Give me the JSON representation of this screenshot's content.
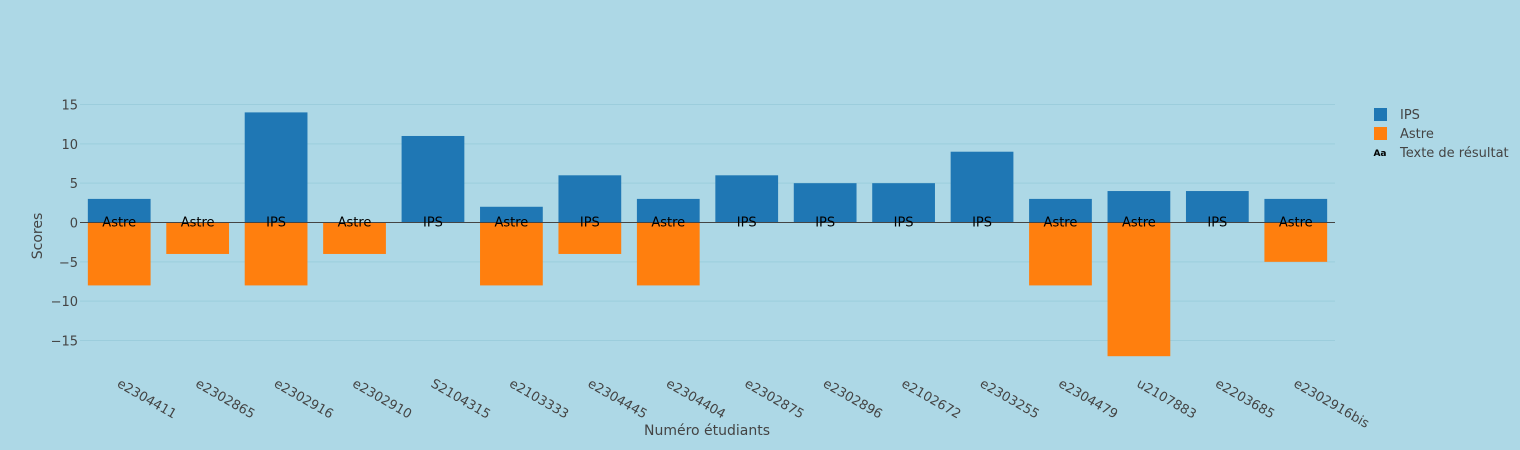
{
  "chart_data": {
    "type": "bar",
    "barmode": "relative",
    "title": "",
    "xlabel": "Numéro étudiants",
    "ylabel": "Scores",
    "ylim": [
      -18.5,
      18.5
    ],
    "yticks": [
      -15,
      -10,
      -5,
      0,
      5,
      10,
      15
    ],
    "grid": true,
    "legend_position": "top-right",
    "categories": [
      "e2304411",
      "e2302865",
      "e2302916",
      "e2302910",
      "S2104315",
      "e2103333",
      "e2304445",
      "e2304404",
      "e2302875",
      "e2302896",
      "e2102672",
      "e2303255",
      "e2304479",
      "u2107883",
      "e2203685",
      "e2302916bis"
    ],
    "series": [
      {
        "name": "IPS",
        "color": "#1f77b4",
        "values": [
          3,
          0,
          14,
          0,
          11,
          2,
          6,
          3,
          6,
          5,
          5,
          9,
          3,
          4,
          4,
          3
        ]
      },
      {
        "name": "Astre",
        "color": "#ff7f0e",
        "values": [
          -8,
          -4,
          -8,
          -4,
          0,
          -8,
          -4,
          -8,
          0,
          0,
          0,
          0,
          -8,
          -17,
          0,
          -5
        ]
      }
    ],
    "result_text": {
      "name": "Texte de résultat",
      "labels": [
        "Astre",
        "Astre",
        "IPS",
        "Astre",
        "IPS",
        "Astre",
        "IPS",
        "Astre",
        "IPS",
        "IPS",
        "IPS",
        "IPS",
        "Astre",
        "Astre",
        "IPS",
        "Astre"
      ]
    }
  }
}
